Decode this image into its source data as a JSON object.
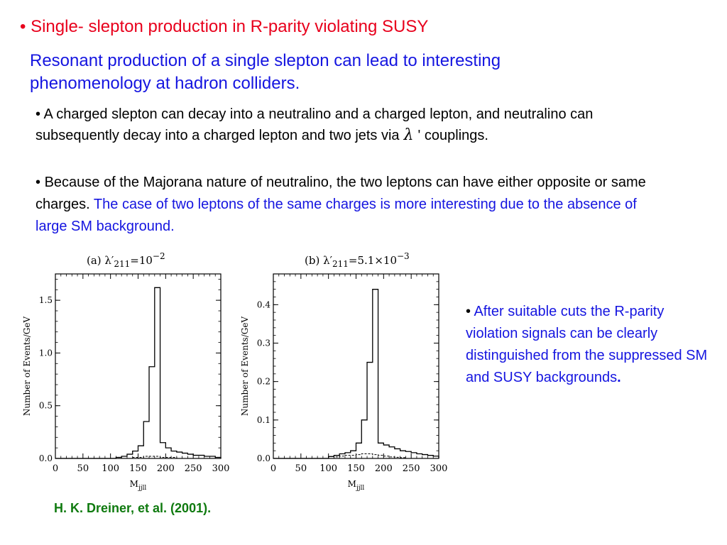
{
  "heading": {
    "bullet": "•",
    "text": "Single- slepton production in R-parity violating SUSY",
    "color": "#e8001c"
  },
  "intro": "Resonant production of a single slepton can lead to interesting phenomenology at hadron colliders.",
  "point1": {
    "bullet": "•",
    "text_before": "A charged slepton can decay into a neutralino and a charged lepton, and neutralino can subsequently decay into a charged lepton and two jets via",
    "symbol": "λ",
    "text_after": "' couplings."
  },
  "point2": {
    "bullet": "•",
    "text_plain": "Because of the Majorana nature of neutralino, the two leptons can have either opposite or same charges.",
    "text_highlight": "The case of two leptons of the same charges is more interesting due to the absence of large SM background."
  },
  "side_note": {
    "bullet": "•",
    "text": "After suitable cuts the R-parity violation signals can be clearly distinguished from the suppressed SM and SUSY backgrounds",
    "end": "."
  },
  "citation": "H. K. Dreiner, et al. (2001).",
  "colors": {
    "red": "#e8001c",
    "blue": "#1515e0",
    "green": "#0f7a0f"
  },
  "chart_data": [
    {
      "type": "histogram",
      "panel_label": "(a)",
      "title_prefix": "λ′",
      "title_sub": "211",
      "title_eq": "=10",
      "title_sup": "−2",
      "xlabel_main": "M",
      "xlabel_sub": "jjll",
      "ylabel": "Number of Events/GeV",
      "xlim": [
        0,
        300
      ],
      "ylim": [
        0,
        1.75
      ],
      "x_ticks": [
        "0",
        "50",
        "100",
        "150",
        "200",
        "250",
        "300"
      ],
      "y_ticks": [
        "0.0",
        "0.5",
        "1.0",
        "1.5"
      ],
      "y_tick_values": [
        0,
        0.5,
        1.0,
        1.5
      ],
      "bin_width": 10,
      "bins_start": [
        0,
        10,
        20,
        30,
        40,
        50,
        60,
        70,
        80,
        90,
        100,
        110,
        120,
        130,
        140,
        150,
        160,
        170,
        180,
        190,
        200,
        210,
        220,
        230,
        240,
        250,
        260,
        270,
        280,
        290
      ],
      "signal_values": [
        0,
        0,
        0,
        0,
        0,
        0,
        0,
        0,
        0,
        0,
        0,
        0.01,
        0.02,
        0.04,
        0.07,
        0.12,
        0.35,
        0.87,
        1.62,
        0.15,
        0.1,
        0.07,
        0.06,
        0.05,
        0.04,
        0.03,
        0.03,
        0.02,
        0.02,
        0.01
      ],
      "background_values": [
        0,
        0,
        0,
        0,
        0,
        0,
        0,
        0,
        0,
        0,
        0,
        0,
        0,
        0,
        0.01,
        0.01,
        0.02,
        0.02,
        0.02,
        0.01,
        0.01,
        0.01,
        0,
        0,
        0,
        0,
        0,
        0,
        0,
        0
      ]
    },
    {
      "type": "histogram",
      "panel_label": "(b)",
      "title_prefix": "λ′",
      "title_sub": "211",
      "title_eq": "=5.1×10",
      "title_sup": "−3",
      "xlabel_main": "M",
      "xlabel_sub": "jjll",
      "ylabel": "Number of Events/GeV",
      "xlim": [
        0,
        300
      ],
      "ylim": [
        0,
        0.48
      ],
      "x_ticks": [
        "0",
        "50",
        "100",
        "150",
        "200",
        "250",
        "300"
      ],
      "y_ticks": [
        "0.0",
        "0.1",
        "0.2",
        "0.3",
        "0.4"
      ],
      "y_tick_values": [
        0,
        0.1,
        0.2,
        0.3,
        0.4
      ],
      "bin_width": 10,
      "bins_start": [
        0,
        10,
        20,
        30,
        40,
        50,
        60,
        70,
        80,
        90,
        100,
        110,
        120,
        130,
        140,
        150,
        160,
        170,
        180,
        190,
        200,
        210,
        220,
        230,
        240,
        250,
        260,
        270,
        280,
        290
      ],
      "signal_values": [
        0,
        0,
        0,
        0,
        0,
        0,
        0,
        0,
        0,
        0,
        0.005,
        0.008,
        0.012,
        0.015,
        0.02,
        0.04,
        0.1,
        0.25,
        0.44,
        0.04,
        0.035,
        0.03,
        0.025,
        0.02,
        0.018,
        0.015,
        0.012,
        0.01,
        0.008,
        0.006
      ],
      "background_values": [
        0,
        0,
        0,
        0,
        0,
        0,
        0,
        0,
        0,
        0,
        0,
        0.004,
        0.006,
        0.008,
        0.008,
        0.01,
        0.012,
        0.012,
        0.01,
        0.008,
        0.006,
        0.004,
        0.003,
        0.002,
        0,
        0,
        0,
        0,
        0,
        0
      ]
    }
  ]
}
